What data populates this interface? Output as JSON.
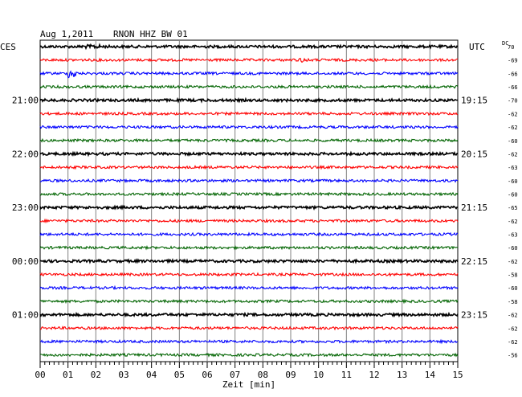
{
  "header": {
    "date": "Aug 1,2011",
    "station": "RNON HHZ BW 01",
    "left_tz": "CES",
    "right_tz": "UTC",
    "dc_label": "DC"
  },
  "chart_data": {
    "type": "line",
    "title": "Aug 1,2011   RNON HHZ BW 01",
    "xlabel": "Zeit [min]",
    "xlim": [
      0,
      15
    ],
    "x_ticks": [
      "00",
      "01",
      "02",
      "03",
      "04",
      "05",
      "06",
      "07",
      "08",
      "09",
      "10",
      "11",
      "12",
      "13",
      "14",
      "15"
    ],
    "colors": [
      "#000000",
      "#ff0000",
      "#0000ff",
      "#006400"
    ],
    "rows": 24,
    "left_time_labels": [
      {
        "row": 4,
        "text": "21:00"
      },
      {
        "row": 8,
        "text": "22:00"
      },
      {
        "row": 12,
        "text": "23:00"
      },
      {
        "row": 16,
        "text": "00:00"
      },
      {
        "row": 20,
        "text": "01:00"
      }
    ],
    "right_time_labels": [
      {
        "row": 4,
        "text": "19:15"
      },
      {
        "row": 8,
        "text": "20:15"
      },
      {
        "row": 12,
        "text": "21:15"
      },
      {
        "row": 16,
        "text": "22:15"
      },
      {
        "row": 20,
        "text": "23:15"
      }
    ],
    "dc_offsets": [
      "70",
      "-69",
      "-66",
      "-66",
      "-70",
      "-62",
      "-62",
      "-60",
      "-62",
      "-63",
      "-60",
      "-60",
      "-65",
      "-62",
      "-63",
      "-60",
      "-62",
      "-58",
      "-60",
      "-58",
      "-62",
      "-62",
      "-62",
      "-56"
    ]
  }
}
